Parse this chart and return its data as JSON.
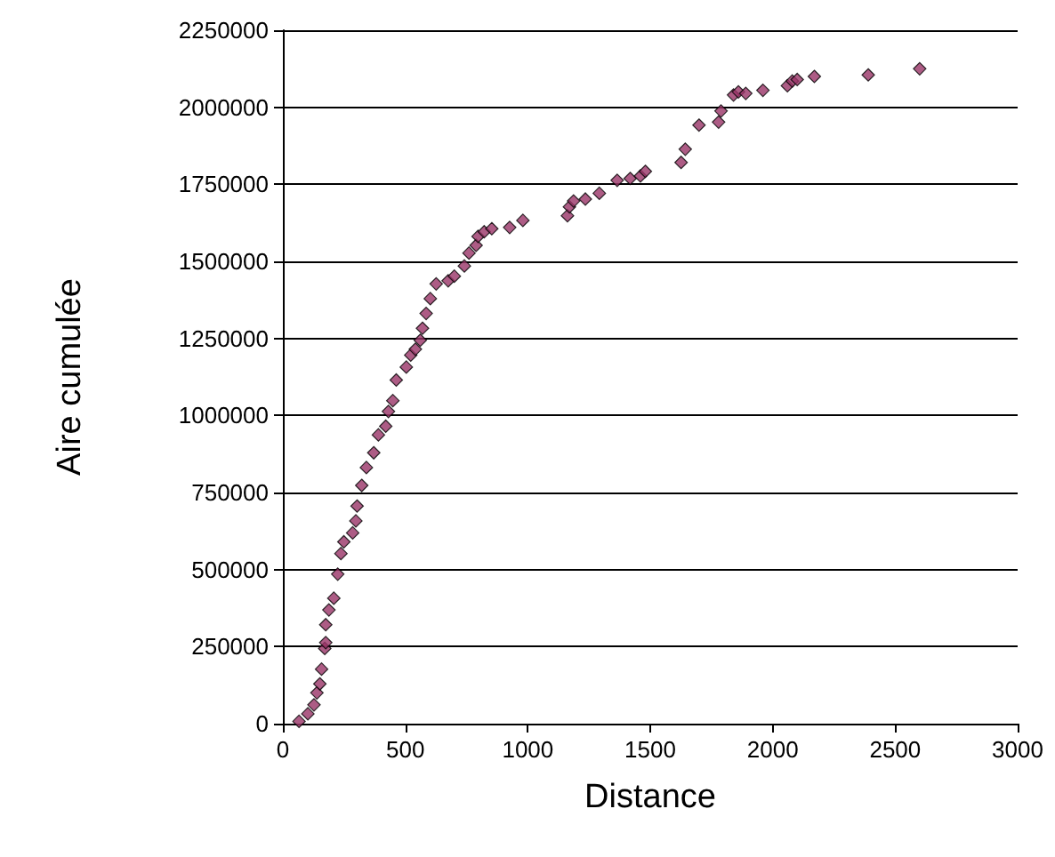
{
  "chart_data": {
    "type": "scatter",
    "xlabel": "Distance",
    "ylabel": "Aire cumulée",
    "marker": "diamond",
    "grid": "y",
    "xlim": [
      0,
      3000
    ],
    "xticks": [
      0,
      500,
      1000,
      1500,
      2000,
      2500,
      3000
    ],
    "ylim": [
      0,
      2250000
    ],
    "yticks": [
      0,
      250000,
      500000,
      750000,
      1000000,
      1250000,
      1500000,
      1750000,
      2000000,
      2250000
    ],
    "series": [
      {
        "color": "#993366",
        "x": [
          66,
          102,
          127,
          139,
          151,
          158,
          171,
          175,
          175,
          188,
          208,
          224,
          237,
          249,
          285,
          298,
          303,
          322,
          341,
          371,
          390,
          420,
          431,
          449,
          463,
          504,
          522,
          541,
          561,
          570,
          585,
          602,
          626,
          675,
          700,
          741,
          760,
          789,
          797,
          822,
          853,
          926,
          980,
          1162,
          1170,
          1187,
          1235,
          1292,
          1365,
          1418,
          1460,
          1480,
          1626,
          1643,
          1699,
          1779,
          1789,
          1840,
          1860,
          1890,
          1960,
          2060,
          2080,
          2100,
          2170,
          2390,
          2600
        ],
        "values": [
          7500,
          32000,
          61000,
          100000,
          129000,
          177000,
          244000,
          263000,
          321000,
          369000,
          407000,
          485000,
          552000,
          590000,
          619000,
          658000,
          706000,
          773000,
          831000,
          879000,
          937000,
          965000,
          1013000,
          1048000,
          1115000,
          1157000,
          1196000,
          1215000,
          1244000,
          1283000,
          1331000,
          1379000,
          1427000,
          1437000,
          1452000,
          1485000,
          1527000,
          1552000,
          1581000,
          1596000,
          1606000,
          1610000,
          1633000,
          1648000,
          1677000,
          1696000,
          1702000,
          1721000,
          1763000,
          1769000,
          1777000,
          1792000,
          1821000,
          1864000,
          1942000,
          1952000,
          1988000,
          2040000,
          2050000,
          2045000,
          2055000,
          2070000,
          2085000,
          2090000,
          2100000,
          2105000,
          2125000
        ]
      }
    ]
  }
}
